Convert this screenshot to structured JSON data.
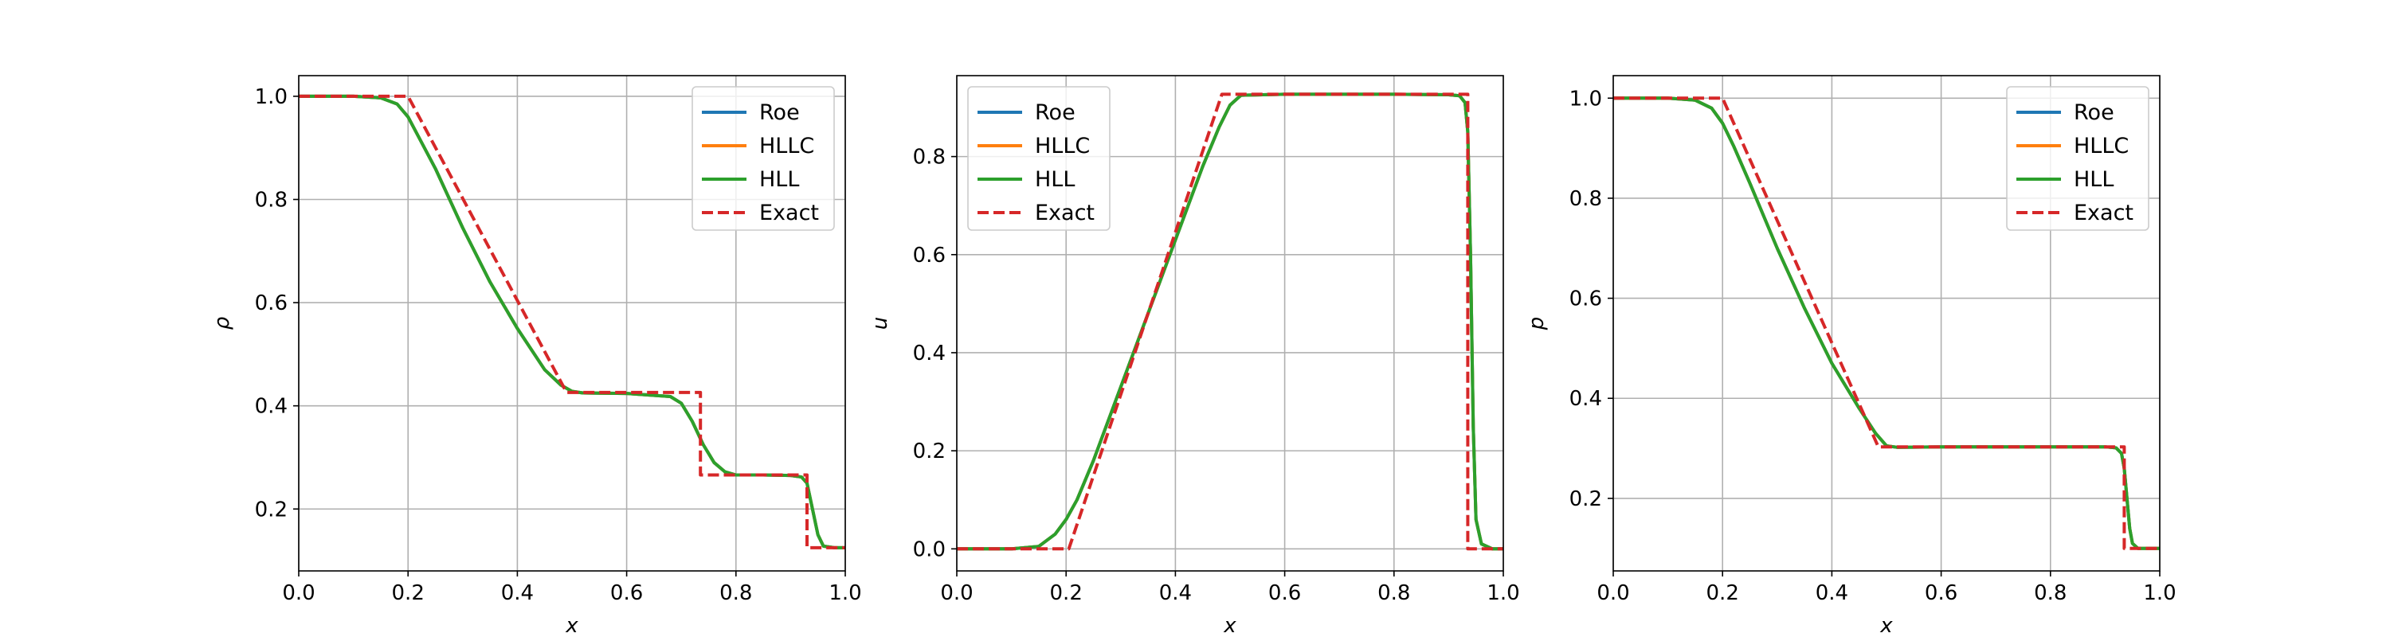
{
  "colors": {
    "roe": "#1f77b4",
    "hllc": "#ff7f0e",
    "hll": "#2ca02c",
    "exact": "#d62728"
  },
  "chart_data": [
    {
      "type": "line",
      "xlabel": "x",
      "ylabel": "ρ",
      "xlim": [
        0.0,
        1.0
      ],
      "ylim": [
        0.08,
        1.04
      ],
      "xticks": [
        0.0,
        0.2,
        0.4,
        0.6,
        0.8,
        1.0
      ],
      "xtick_labels": [
        "0.0",
        "0.2",
        "0.4",
        "0.6",
        "0.8",
        "1.0"
      ],
      "yticks": [
        0.2,
        0.4,
        0.6,
        0.8,
        1.0
      ],
      "ytick_labels": [
        "0.2",
        "0.4",
        "0.6",
        "0.8",
        "1.0"
      ],
      "grid": true,
      "legend_position": "top-right",
      "series": [
        {
          "name": "Roe",
          "color_key": "roe",
          "style": "solid",
          "x": [
            0.0,
            0.1,
            0.15,
            0.18,
            0.2,
            0.22,
            0.25,
            0.3,
            0.35,
            0.4,
            0.45,
            0.48,
            0.5,
            0.52,
            0.6,
            0.68,
            0.7,
            0.72,
            0.74,
            0.76,
            0.78,
            0.8,
            0.85,
            0.9,
            0.92,
            0.93,
            0.94,
            0.95,
            0.96,
            0.98,
            1.0
          ],
          "y": [
            1.0,
            1.0,
            0.997,
            0.985,
            0.96,
            0.92,
            0.86,
            0.745,
            0.64,
            0.55,
            0.47,
            0.44,
            0.428,
            0.425,
            0.424,
            0.418,
            0.405,
            0.37,
            0.325,
            0.29,
            0.272,
            0.266,
            0.266,
            0.265,
            0.262,
            0.25,
            0.2,
            0.15,
            0.128,
            0.125,
            0.125
          ]
        },
        {
          "name": "HLLC",
          "color_key": "hllc",
          "style": "solid",
          "x": [
            0.0,
            0.1,
            0.15,
            0.18,
            0.2,
            0.22,
            0.25,
            0.3,
            0.35,
            0.4,
            0.45,
            0.48,
            0.5,
            0.52,
            0.6,
            0.68,
            0.7,
            0.72,
            0.74,
            0.76,
            0.78,
            0.8,
            0.85,
            0.9,
            0.92,
            0.93,
            0.94,
            0.95,
            0.96,
            0.98,
            1.0
          ],
          "y": [
            1.0,
            1.0,
            0.997,
            0.985,
            0.96,
            0.92,
            0.86,
            0.745,
            0.64,
            0.55,
            0.47,
            0.44,
            0.428,
            0.425,
            0.424,
            0.418,
            0.405,
            0.37,
            0.325,
            0.29,
            0.272,
            0.266,
            0.266,
            0.265,
            0.262,
            0.25,
            0.2,
            0.15,
            0.128,
            0.125,
            0.125
          ]
        },
        {
          "name": "HLL",
          "color_key": "hll",
          "style": "solid",
          "x": [
            0.0,
            0.1,
            0.15,
            0.18,
            0.2,
            0.22,
            0.25,
            0.3,
            0.35,
            0.4,
            0.45,
            0.48,
            0.5,
            0.52,
            0.6,
            0.68,
            0.7,
            0.72,
            0.74,
            0.76,
            0.78,
            0.8,
            0.85,
            0.9,
            0.92,
            0.93,
            0.94,
            0.95,
            0.96,
            0.98,
            1.0
          ],
          "y": [
            1.0,
            1.0,
            0.997,
            0.985,
            0.96,
            0.92,
            0.86,
            0.745,
            0.64,
            0.55,
            0.47,
            0.44,
            0.428,
            0.425,
            0.424,
            0.418,
            0.405,
            0.37,
            0.325,
            0.29,
            0.272,
            0.266,
            0.266,
            0.265,
            0.262,
            0.25,
            0.2,
            0.15,
            0.128,
            0.125,
            0.125
          ]
        },
        {
          "name": "Exact",
          "color_key": "exact",
          "style": "dashed",
          "x": [
            0.0,
            0.2,
            0.49,
            0.735,
            0.735,
            0.93,
            0.93,
            1.0
          ],
          "y": [
            1.0,
            1.0,
            0.426,
            0.426,
            0.266,
            0.266,
            0.125,
            0.125
          ]
        }
      ]
    },
    {
      "type": "line",
      "xlabel": "x",
      "ylabel": "u",
      "xlim": [
        0.0,
        1.0
      ],
      "ylim": [
        -0.045,
        0.965
      ],
      "xticks": [
        0.0,
        0.2,
        0.4,
        0.6,
        0.8,
        1.0
      ],
      "xtick_labels": [
        "0.0",
        "0.2",
        "0.4",
        "0.6",
        "0.8",
        "1.0"
      ],
      "yticks": [
        0.0,
        0.2,
        0.4,
        0.6,
        0.8
      ],
      "ytick_labels": [
        "0.0",
        "0.2",
        "0.4",
        "0.6",
        "0.8"
      ],
      "grid": true,
      "legend_position": "top-left",
      "series": [
        {
          "name": "Roe",
          "color_key": "roe",
          "style": "solid",
          "x": [
            0.0,
            0.1,
            0.15,
            0.18,
            0.2,
            0.22,
            0.25,
            0.3,
            0.35,
            0.4,
            0.45,
            0.48,
            0.5,
            0.52,
            0.6,
            0.7,
            0.8,
            0.9,
            0.92,
            0.93,
            0.935,
            0.94,
            0.945,
            0.95,
            0.96,
            0.98,
            1.0
          ],
          "y": [
            0.0,
            0.0,
            0.005,
            0.03,
            0.06,
            0.1,
            0.18,
            0.33,
            0.48,
            0.63,
            0.78,
            0.86,
            0.905,
            0.925,
            0.927,
            0.927,
            0.927,
            0.926,
            0.924,
            0.91,
            0.85,
            0.6,
            0.25,
            0.06,
            0.01,
            0.0,
            0.0
          ]
        },
        {
          "name": "HLLC",
          "color_key": "hllc",
          "style": "solid",
          "x": [
            0.0,
            0.1,
            0.15,
            0.18,
            0.2,
            0.22,
            0.25,
            0.3,
            0.35,
            0.4,
            0.45,
            0.48,
            0.5,
            0.52,
            0.6,
            0.7,
            0.8,
            0.9,
            0.92,
            0.93,
            0.935,
            0.94,
            0.945,
            0.95,
            0.96,
            0.98,
            1.0
          ],
          "y": [
            0.0,
            0.0,
            0.005,
            0.03,
            0.06,
            0.1,
            0.18,
            0.33,
            0.48,
            0.63,
            0.78,
            0.86,
            0.905,
            0.925,
            0.927,
            0.927,
            0.927,
            0.926,
            0.924,
            0.91,
            0.85,
            0.6,
            0.25,
            0.06,
            0.01,
            0.0,
            0.0
          ]
        },
        {
          "name": "HLL",
          "color_key": "hll",
          "style": "solid",
          "x": [
            0.0,
            0.1,
            0.15,
            0.18,
            0.2,
            0.22,
            0.25,
            0.3,
            0.35,
            0.4,
            0.45,
            0.48,
            0.5,
            0.52,
            0.6,
            0.7,
            0.8,
            0.9,
            0.92,
            0.93,
            0.935,
            0.94,
            0.945,
            0.95,
            0.96,
            0.98,
            1.0
          ],
          "y": [
            0.0,
            0.0,
            0.005,
            0.03,
            0.06,
            0.1,
            0.18,
            0.33,
            0.48,
            0.63,
            0.78,
            0.86,
            0.905,
            0.925,
            0.927,
            0.927,
            0.927,
            0.926,
            0.924,
            0.91,
            0.85,
            0.6,
            0.25,
            0.06,
            0.01,
            0.0,
            0.0
          ]
        },
        {
          "name": "Exact",
          "color_key": "exact",
          "style": "dashed",
          "x": [
            0.0,
            0.205,
            0.485,
            0.935,
            0.935,
            1.0
          ],
          "y": [
            0.0,
            0.0,
            0.927,
            0.927,
            0.0,
            0.0
          ]
        }
      ]
    },
    {
      "type": "line",
      "xlabel": "x",
      "ylabel": "p",
      "xlim": [
        0.0,
        1.0
      ],
      "ylim": [
        0.055,
        1.045
      ],
      "xticks": [
        0.0,
        0.2,
        0.4,
        0.6,
        0.8,
        1.0
      ],
      "xtick_labels": [
        "0.0",
        "0.2",
        "0.4",
        "0.6",
        "0.8",
        "1.0"
      ],
      "yticks": [
        0.2,
        0.4,
        0.6,
        0.8,
        1.0
      ],
      "ytick_labels": [
        "0.2",
        "0.4",
        "0.6",
        "0.8",
        "1.0"
      ],
      "grid": true,
      "legend_position": "top-right",
      "series": [
        {
          "name": "Roe",
          "color_key": "roe",
          "style": "solid",
          "x": [
            0.0,
            0.1,
            0.15,
            0.18,
            0.2,
            0.22,
            0.25,
            0.3,
            0.35,
            0.4,
            0.45,
            0.48,
            0.5,
            0.52,
            0.6,
            0.7,
            0.8,
            0.9,
            0.92,
            0.93,
            0.935,
            0.94,
            0.945,
            0.95,
            0.96,
            0.98,
            1.0
          ],
          "y": [
            1.0,
            1.0,
            0.996,
            0.98,
            0.95,
            0.905,
            0.83,
            0.7,
            0.58,
            0.47,
            0.38,
            0.33,
            0.305,
            0.302,
            0.303,
            0.303,
            0.303,
            0.303,
            0.301,
            0.29,
            0.26,
            0.2,
            0.14,
            0.11,
            0.1,
            0.1,
            0.1
          ]
        },
        {
          "name": "HLLC",
          "color_key": "hllc",
          "style": "solid",
          "x": [
            0.0,
            0.1,
            0.15,
            0.18,
            0.2,
            0.22,
            0.25,
            0.3,
            0.35,
            0.4,
            0.45,
            0.48,
            0.5,
            0.52,
            0.6,
            0.7,
            0.8,
            0.9,
            0.92,
            0.93,
            0.935,
            0.94,
            0.945,
            0.95,
            0.96,
            0.98,
            1.0
          ],
          "y": [
            1.0,
            1.0,
            0.996,
            0.98,
            0.95,
            0.905,
            0.83,
            0.7,
            0.58,
            0.47,
            0.38,
            0.33,
            0.305,
            0.302,
            0.303,
            0.303,
            0.303,
            0.303,
            0.301,
            0.29,
            0.26,
            0.2,
            0.14,
            0.11,
            0.1,
            0.1,
            0.1
          ]
        },
        {
          "name": "HLL",
          "color_key": "hll",
          "style": "solid",
          "x": [
            0.0,
            0.1,
            0.15,
            0.18,
            0.2,
            0.22,
            0.25,
            0.3,
            0.35,
            0.4,
            0.45,
            0.48,
            0.5,
            0.52,
            0.6,
            0.7,
            0.8,
            0.9,
            0.92,
            0.93,
            0.935,
            0.94,
            0.945,
            0.95,
            0.96,
            0.98,
            1.0
          ],
          "y": [
            1.0,
            1.0,
            0.996,
            0.98,
            0.95,
            0.905,
            0.83,
            0.7,
            0.58,
            0.47,
            0.38,
            0.33,
            0.305,
            0.302,
            0.303,
            0.303,
            0.303,
            0.303,
            0.301,
            0.29,
            0.26,
            0.2,
            0.14,
            0.11,
            0.1,
            0.1,
            0.1
          ]
        },
        {
          "name": "Exact",
          "color_key": "exact",
          "style": "dashed",
          "x": [
            0.0,
            0.2,
            0.485,
            0.935,
            0.935,
            1.0
          ],
          "y": [
            1.0,
            1.0,
            0.303,
            0.303,
            0.1,
            0.1
          ]
        }
      ]
    }
  ]
}
